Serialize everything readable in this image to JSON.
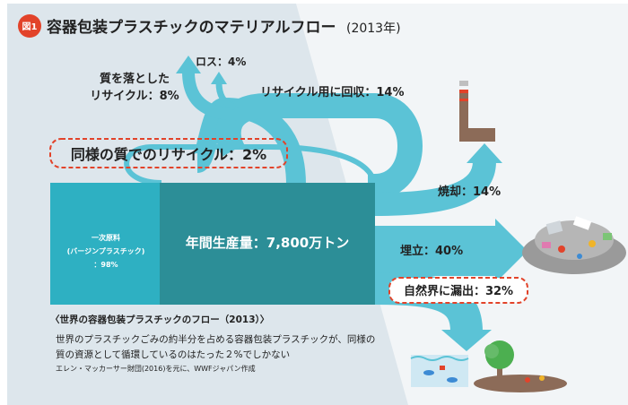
{
  "header": {
    "badge": "図1",
    "title": "容器包装プラスチックのマテリアルフロー",
    "year": "(2013年)"
  },
  "flows": {
    "recycle_low_quality": {
      "line1": "質を落とした",
      "line2": "リサイクル：8%"
    },
    "loss": "ロス：4%",
    "collected_for_recycling": "リサイクル用に回収：14%",
    "same_quality_recycling": "同様の質でのリサイクル：2%",
    "incineration": "焼却：14%",
    "landfill": "埋立：40%",
    "leakage_to_nature": "自然界に漏出：32%"
  },
  "blocks": {
    "virgin": {
      "line1": "一次原料",
      "line2": "(バージンプラスチック)",
      "line3": "：98%"
    },
    "annual_production": "年間生産量：7,800万トン"
  },
  "caption": {
    "heading": "〈世界の容器包装プラスチックのフロー（2013）〉",
    "line1": "世界のプラスチックごみの約半分を占める容器包装プラスチックが、同様の",
    "line2": "質の資源として循環しているのはたった２%でしかない",
    "source": "エレン・マッカーサー財団(2016)を元に、WWFジャパン作成"
  },
  "colors": {
    "background_panel": "#dde6ec",
    "flow": "#5bc3d6",
    "virgin_block": "#2eb0c2",
    "production_block": "#2c8e97",
    "accent_red": "#e2432a",
    "factory": "#8c6b58"
  }
}
